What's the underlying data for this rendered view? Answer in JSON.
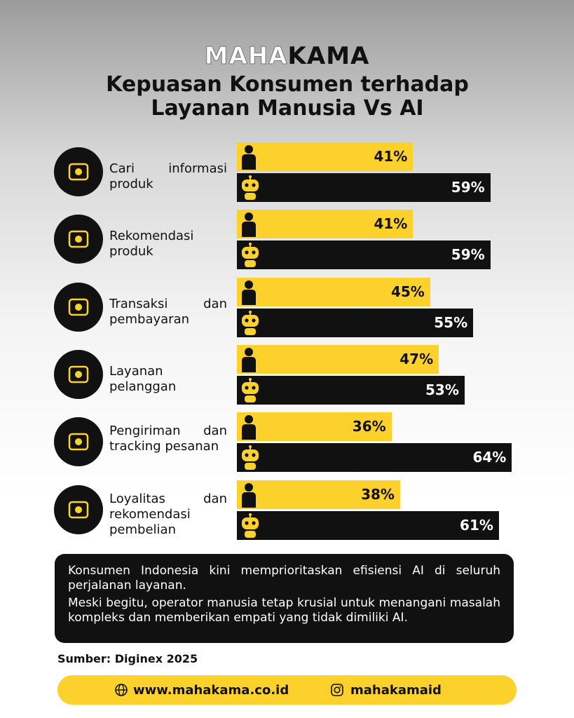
{
  "brand": {
    "light": "MAHA",
    "dark": "KAMA"
  },
  "chart_data": {
    "type": "bar",
    "orientation": "horizontal",
    "title": "Kepuasan Konsumen terhadap Layanan Manusia Vs AI",
    "categories": [
      "Cari informasi produk",
      "Rekomendasi produk",
      "Transaksi dan pembayaran",
      "Layanan pelanggan",
      "Pengiriman dan tracking pesanan",
      "Loyalitas dan rekomendasi pembelian"
    ],
    "series": [
      {
        "color": "#fdd12b",
        "values": [
          41,
          41,
          45,
          47,
          36,
          38
        ],
        "value_labels": [
          "41%",
          "41%",
          "45%",
          "47%",
          "36%",
          "38%"
        ]
      },
      {
        "color": "#111111",
        "values": [
          59,
          59,
          55,
          53,
          64,
          61
        ],
        "value_labels": [
          "59%",
          "59%",
          "55%",
          "53%",
          "64%",
          "61%"
        ]
      }
    ]
  },
  "note": [
    "Konsumen Indonesia kini memprioritaskan efisiensi AI di seluruh perjalanan layanan.",
    "Meski begitu, operator manusia tetap krusial untuk menangani masalah kompleks dan memberikan empati yang tidak dimiliki AI."
  ],
  "source": "Sumber: Diginex 2025",
  "footer": {
    "website": "www.mahakama.co.id",
    "instagram": "mahakamaid"
  }
}
